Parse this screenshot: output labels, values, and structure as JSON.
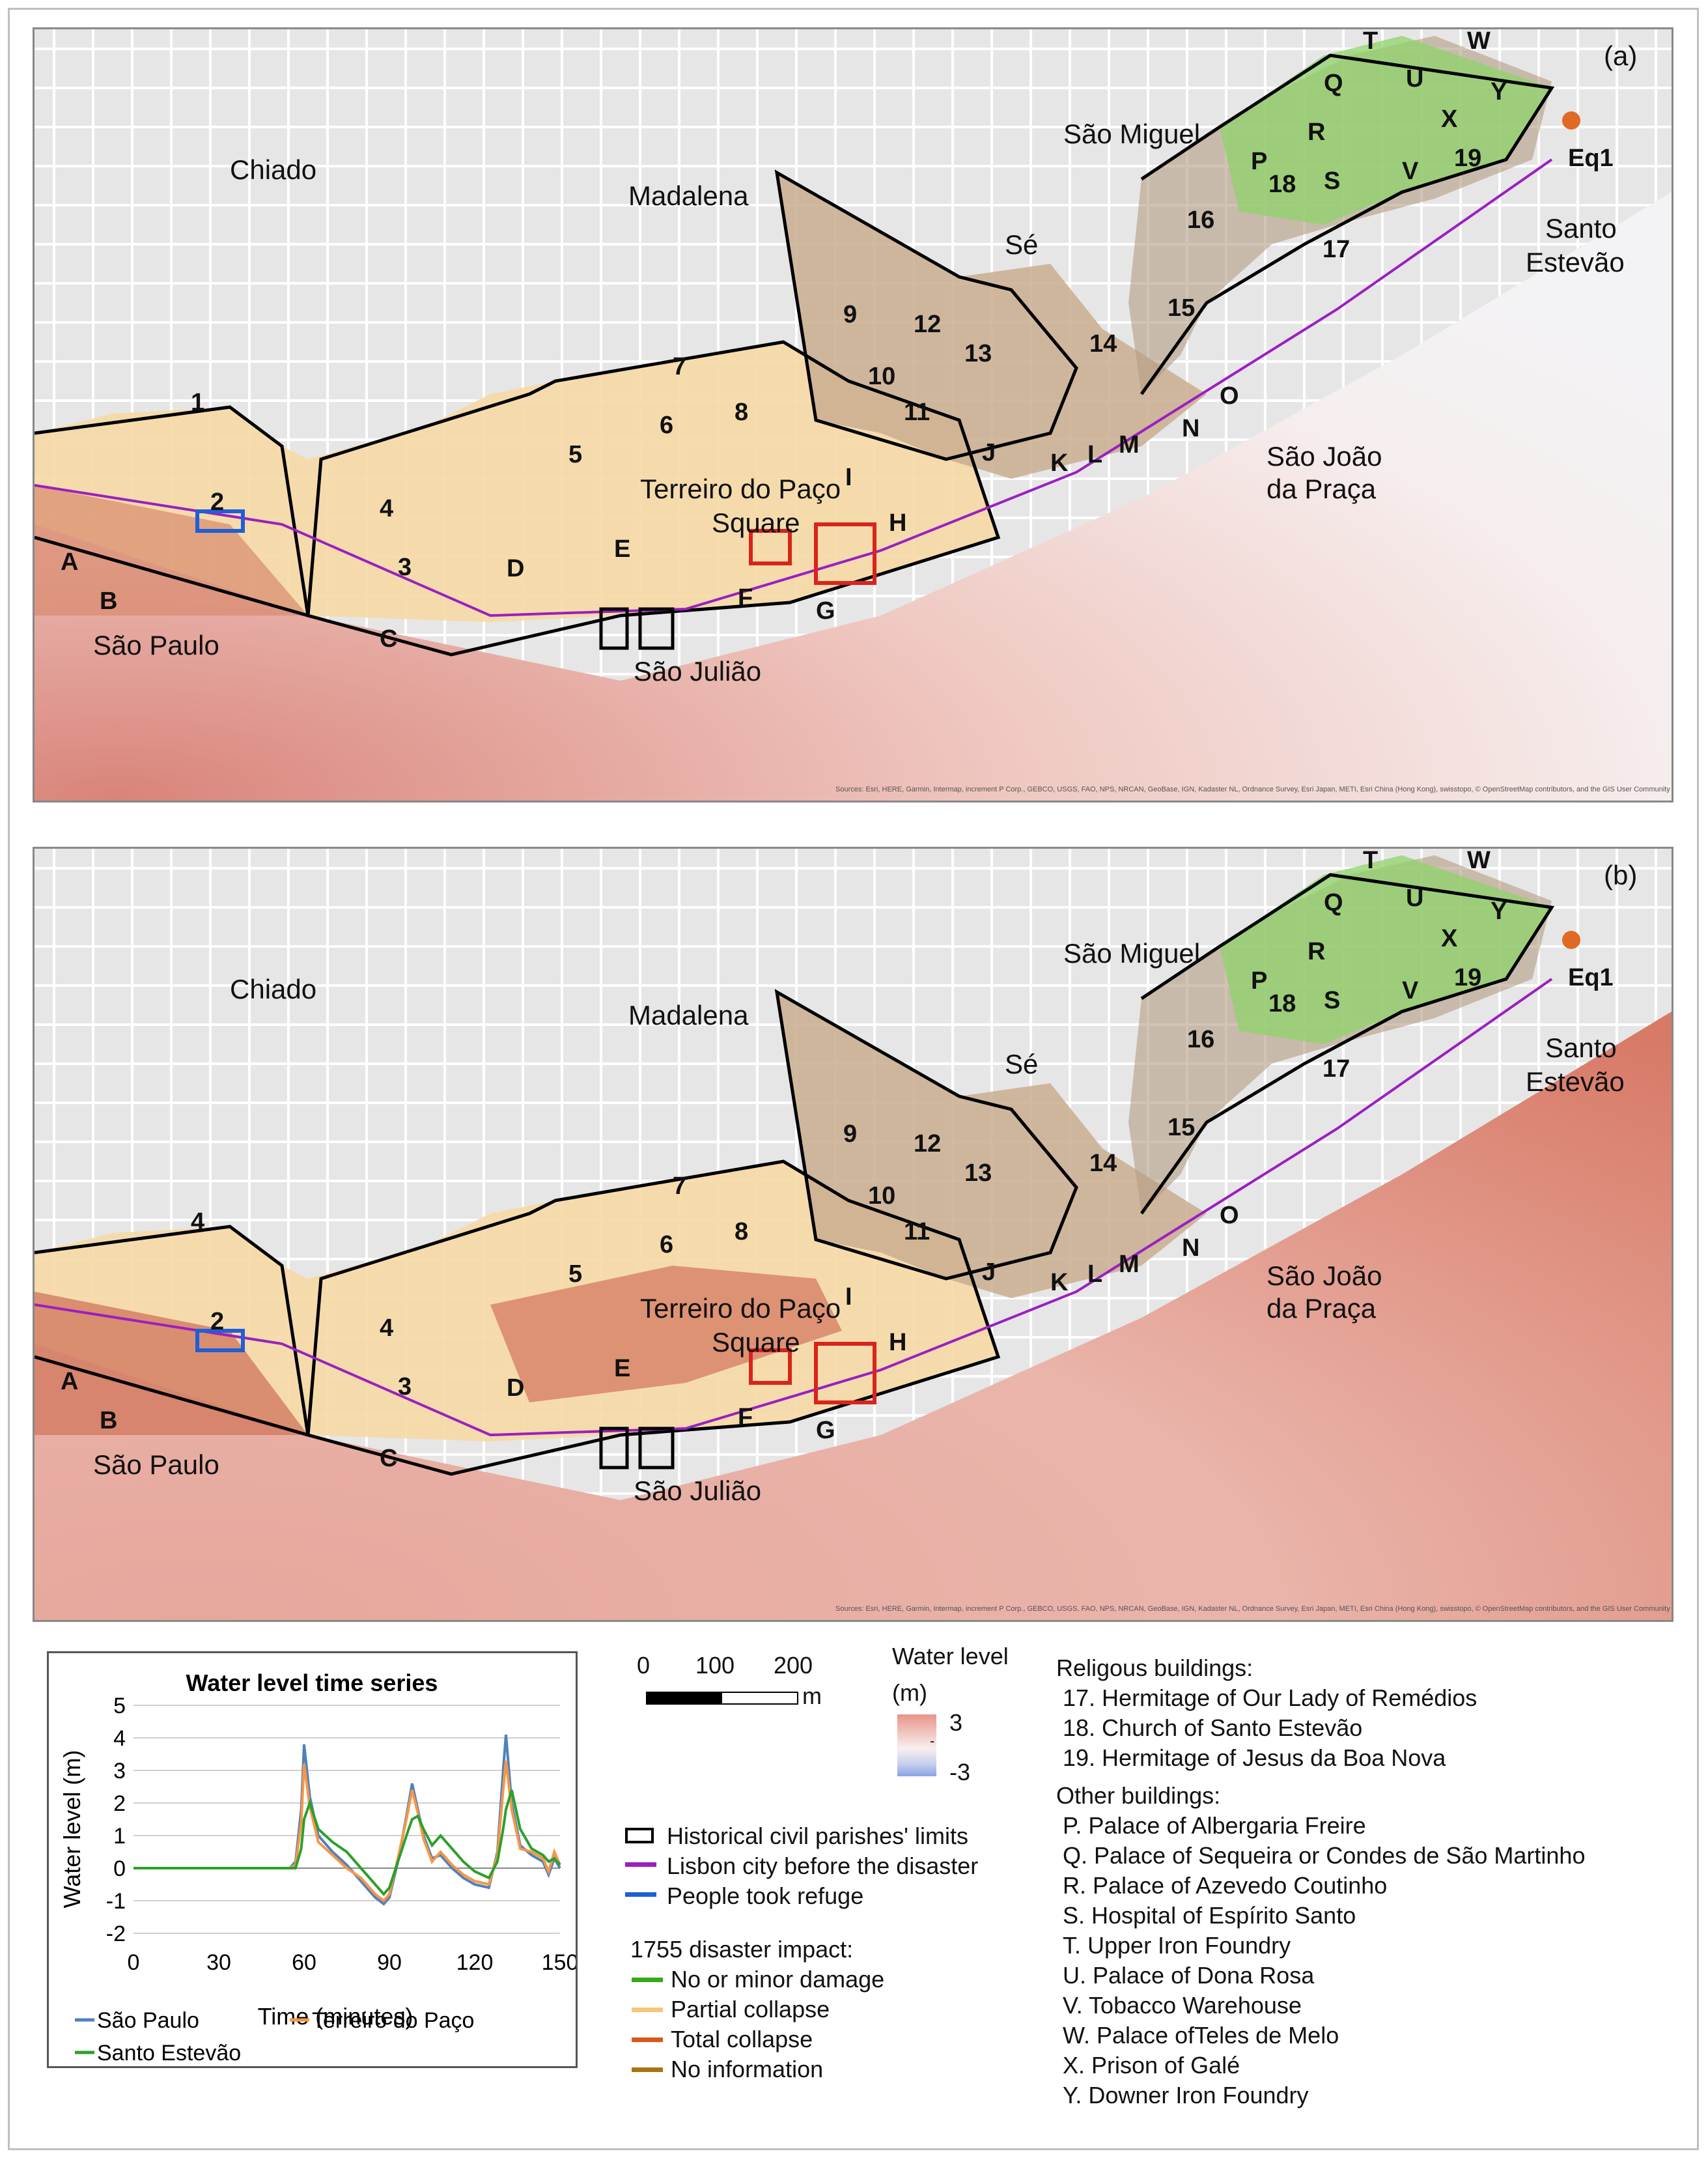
{
  "panels": [
    {
      "id": "a",
      "label": "(a)",
      "places": {
        "sao_miguel": "São Miguel",
        "madalena": "Madalena",
        "se": "Sé",
        "santo": "Santo",
        "estevao": "Estevão",
        "sao_joao": "São João",
        "da_praca": "da Praça",
        "terreiro": "Terreiro do Paço",
        "square": "Square",
        "sao_paulo": "São Paulo",
        "sao_juliao": "São Julião",
        "chiado": "Chiado"
      },
      "attribution": "Sources: Esri, HERE, Garmin, Intermap, increment P Corp., GEBCO, USGS, FAO, NPS, NRCAN, GeoBase, IGN, Kadaster NL, Ordnance Survey, Esri Japan, METI, Esri China (Hong Kong), swisstopo, © OpenStreetMap contributors, and the GIS User Community"
    },
    {
      "id": "b",
      "label": "(b)",
      "places": {
        "sao_miguel": "São Miguel",
        "madalena": "Madalena",
        "se": "Sé",
        "santo": "Santo",
        "estevao": "Estevão",
        "sao_joao": "São João",
        "da_praca": "da Praça",
        "terreiro": "Terreiro do Paço",
        "square": "Square",
        "sao_paulo": "São Paulo",
        "sao_juliao": "São Julião",
        "chiado": "Chiado"
      },
      "attribution": "Sources: Esri, HERE, Garmin, Intermap, increment P Corp., GEBCO, USGS, FAO, NPS, NRCAN, GeoBase, IGN, Kadaster NL, Ordnance Survey, Esri Japan, METI, Esri China (Hong Kong), swisstopo, © OpenStreetMap contributors, and the GIS User Community"
    }
  ],
  "map_labels_a": {
    "n1": "1",
    "n2": "2",
    "n3": "3",
    "n4": "4",
    "n5": "5",
    "n6": "6",
    "n7": "7",
    "n8": "8",
    "n9": "9",
    "n10": "10",
    "n11": "11",
    "n12": "12",
    "n13": "13",
    "n14": "14",
    "n15": "15",
    "n16": "16",
    "n17": "17",
    "n18": "18",
    "n19": "19",
    "A": "A",
    "B": "B",
    "C": "C",
    "D": "D",
    "E": "E",
    "F": "F",
    "G": "G",
    "H": "H",
    "I": "I",
    "J": "J",
    "K": "K",
    "L": "L",
    "M": "M",
    "N": "N",
    "O": "O",
    "P": "P",
    "Q": "Q",
    "R": "R",
    "S": "S",
    "T": "T",
    "U": "U",
    "V": "V",
    "W": "W",
    "X": "X",
    "Y": "Y",
    "Eq1": "Eq1"
  },
  "map_labels_b": {
    "n4a": "4",
    "n2": "2",
    "n3": "3",
    "n4": "4",
    "n5": "5",
    "n6": "6",
    "n7": "7",
    "n8": "8",
    "n9": "9",
    "n10": "10",
    "n11": "11",
    "n12": "12",
    "n13": "13",
    "n14": "14",
    "n15": "15",
    "n16": "16",
    "n17": "17",
    "n18": "18",
    "n19": "19",
    "A": "A",
    "B": "B",
    "C": "C",
    "D": "D",
    "E": "E",
    "F": "F",
    "G": "G",
    "H": "H",
    "I": "I",
    "J": "J",
    "K": "K",
    "L": "L",
    "M": "M",
    "N": "N",
    "O": "O",
    "P": "P",
    "Q": "Q",
    "R": "R",
    "S": "S",
    "T": "T",
    "U": "U",
    "V": "V",
    "W": "W",
    "X": "X",
    "Y": "Y",
    "Eq1": "Eq1"
  },
  "chart_data": {
    "type": "line",
    "title": "Water level time series",
    "xlabel": "Time (minutes)",
    "ylabel": "Water level (m)",
    "xlim": [
      0,
      150
    ],
    "ylim": [
      -2,
      5
    ],
    "xticks": [
      "0",
      "30",
      "60",
      "90",
      "120",
      "150"
    ],
    "yticks": [
      "5",
      "4",
      "3",
      "2",
      "1",
      "0",
      "-1",
      "-2"
    ],
    "legend_position": "bottom",
    "series": [
      {
        "name": "São Paulo",
        "color": "#4f81bd",
        "x": [
          0,
          55,
          57,
          59,
          60,
          62,
          65,
          70,
          75,
          80,
          85,
          88,
          90,
          93,
          96,
          98,
          100,
          102,
          105,
          108,
          112,
          116,
          120,
          125,
          128,
          130,
          131,
          133,
          136,
          140,
          144,
          146,
          148,
          150
        ],
        "y": [
          0,
          0,
          0.2,
          1.8,
          3.8,
          2.2,
          1.0,
          0.5,
          0.1,
          -0.4,
          -0.9,
          -1.1,
          -0.9,
          0.2,
          1.6,
          2.6,
          1.8,
          1.0,
          0.3,
          0.4,
          0.0,
          -0.3,
          -0.5,
          -0.6,
          0.5,
          3.0,
          4.1,
          2.0,
          0.7,
          0.4,
          0.2,
          -0.2,
          0.3,
          0.0
        ]
      },
      {
        "name": "Terreiro do Paço",
        "color": "#f79646",
        "x": [
          0,
          55,
          57,
          59,
          60,
          62,
          65,
          70,
          75,
          80,
          85,
          88,
          90,
          93,
          96,
          98,
          100,
          102,
          105,
          108,
          112,
          116,
          120,
          125,
          128,
          130,
          131,
          133,
          136,
          140,
          144,
          146,
          148,
          150
        ],
        "y": [
          0,
          0,
          0.1,
          1.4,
          3.2,
          1.9,
          0.8,
          0.4,
          0.0,
          -0.3,
          -0.8,
          -1.0,
          -0.8,
          0.3,
          1.5,
          2.4,
          1.7,
          0.9,
          0.2,
          0.5,
          0.1,
          -0.2,
          -0.4,
          -0.5,
          0.4,
          2.4,
          3.3,
          1.8,
          0.6,
          0.5,
          0.3,
          -0.1,
          0.5,
          0.1
        ]
      },
      {
        "name": "Santo Estevão",
        "color": "#2ca02c",
        "x": [
          0,
          55,
          57,
          59,
          60,
          62,
          65,
          70,
          75,
          80,
          85,
          88,
          90,
          93,
          96,
          98,
          100,
          102,
          105,
          108,
          112,
          116,
          120,
          125,
          128,
          130,
          131,
          133,
          136,
          140,
          144,
          146,
          148,
          150
        ],
        "y": [
          0,
          0,
          0.0,
          0.6,
          1.5,
          2.0,
          1.2,
          0.8,
          0.5,
          0.0,
          -0.5,
          -0.8,
          -0.6,
          0.2,
          1.0,
          1.5,
          1.6,
          1.2,
          0.7,
          1.0,
          0.6,
          0.2,
          -0.1,
          -0.3,
          0.2,
          1.2,
          1.8,
          2.4,
          1.2,
          0.6,
          0.4,
          0.2,
          0.3,
          0.1
        ]
      }
    ]
  },
  "scale": {
    "t0": "0",
    "t100": "100",
    "t200": "200",
    "unit": "m"
  },
  "water_level_legend": {
    "title1": "Water level",
    "title2": "(m)",
    "max": "3",
    "dash": "-",
    "min": "-3"
  },
  "line_legend": [
    {
      "label": "Historical civil parishes' limits",
      "color": "#000000"
    },
    {
      "label": "Lisbon city before the disaster",
      "color": "#9b1fc1"
    },
    {
      "label": "People took refuge",
      "color": "#1f5fd6"
    }
  ],
  "impact_legend": {
    "title": "1755 disaster impact:",
    "items": [
      {
        "label": "No or minor damage",
        "color": "#3aa81b"
      },
      {
        "label": "Partial collapse",
        "color": "#f6c77a"
      },
      {
        "label": "Total collapse",
        "color": "#d9571b"
      },
      {
        "label": "No information",
        "color": "#a8750f"
      }
    ]
  },
  "religious": {
    "title": "Religous buildings:",
    "items": [
      "17. Hermitage of Our Lady of Remédios",
      "18. Church of Santo Estevão",
      "19. Hermitage of Jesus da Boa Nova"
    ]
  },
  "other": {
    "title": "Other buildings:",
    "items": [
      "P. Palace of Albergaria Freire",
      "Q. Palace of Sequeira or Condes de São Martinho",
      "R. Palace of Azevedo Coutinho",
      "S. Hospital of Espírito Santo",
      "T. Upper Iron Foundry",
      "U. Palace of Dona Rosa",
      "V. Tobacco Warehouse",
      "W. Palace ofTeles de Melo",
      "X. Prison of Galé",
      "Y. Downer Iron Foundry"
    ]
  }
}
